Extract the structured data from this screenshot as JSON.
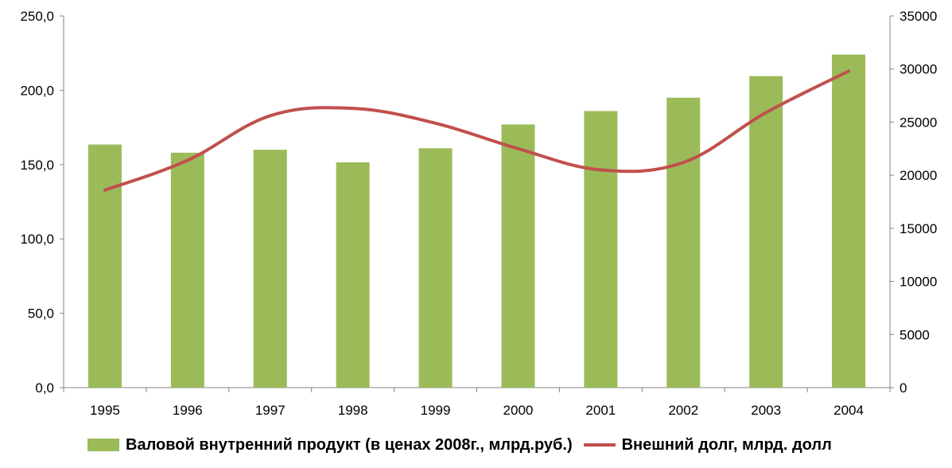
{
  "chart_data": {
    "type": "bar+line",
    "categories": [
      "1995",
      "1996",
      "1997",
      "1998",
      "1999",
      "2000",
      "2001",
      "2002",
      "2003",
      "2004"
    ],
    "series": [
      {
        "name": "Валовой внутренний продукт (в ценах 2008г., млрд.руб.)",
        "type": "bar",
        "axis": "left",
        "color": "#9bbb59",
        "values": [
          163.5,
          158.0,
          160.0,
          151.5,
          161.0,
          177.0,
          186.0,
          195.0,
          209.5,
          224.0
        ]
      },
      {
        "name": "Внешний долг, млрд. долл",
        "type": "line",
        "axis": "right",
        "color": "#c0504d",
        "values": [
          18600,
          21400,
          25600,
          26300,
          24900,
          22500,
          20500,
          21200,
          25900,
          29800
        ]
      }
    ],
    "y_left": {
      "min": 0,
      "max": 250,
      "ticks": [
        "0,0",
        "50,0",
        "100,0",
        "150,0",
        "200,0",
        "250,0"
      ]
    },
    "y_right": {
      "min": 0,
      "max": 35000,
      "ticks": [
        "0",
        "5000",
        "10000",
        "15000",
        "20000",
        "25000",
        "30000",
        "35000"
      ]
    },
    "grid": false,
    "legend": "bottom"
  }
}
